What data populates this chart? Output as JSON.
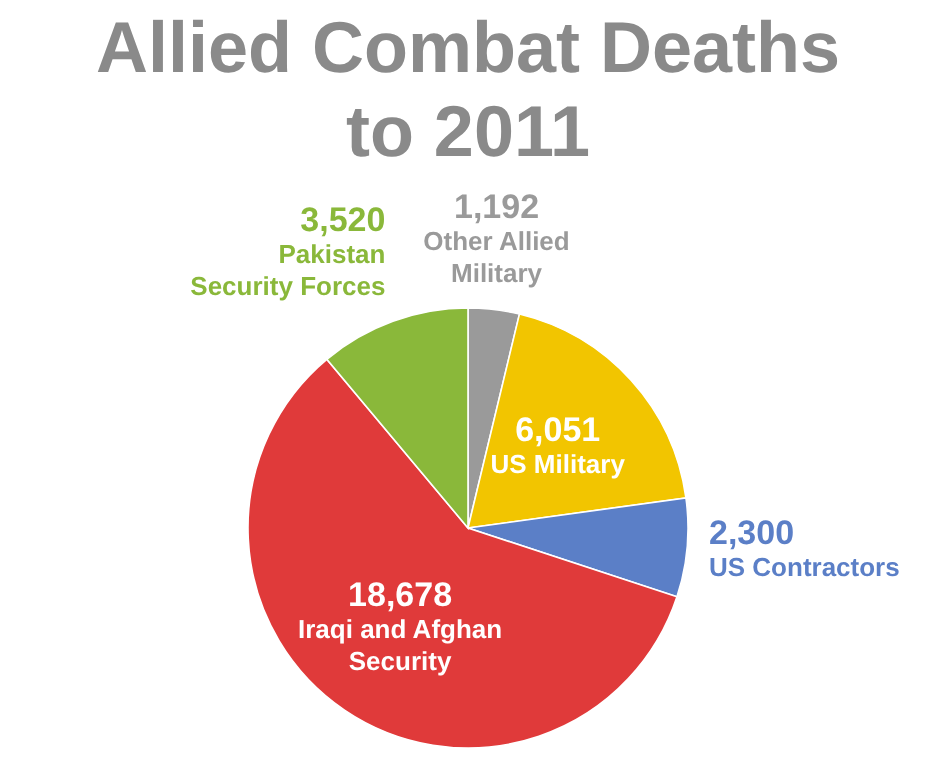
{
  "chart_data": {
    "type": "pie",
    "title": "Allied Combat Deaths to 2011",
    "categories": [
      "Other Allied Military",
      "US Military",
      "US Contractors",
      "Iraqi and Afghan Security",
      "Pakistan Security Forces"
    ],
    "values": [
      1192,
      6051,
      2300,
      18678,
      3520
    ],
    "colors": [
      "#9a9a9a",
      "#f2c500",
      "#5b7fc7",
      "#e03a3a",
      "#8ab83a"
    ],
    "value_labels": [
      "1,192",
      "6,051",
      "2,300",
      "18,678",
      "3,520"
    ]
  }
}
